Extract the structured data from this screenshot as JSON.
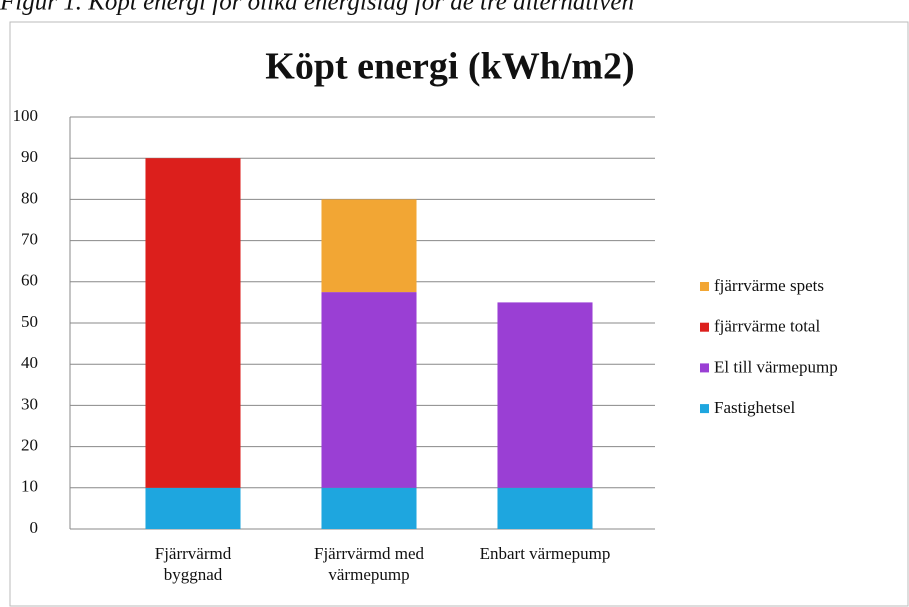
{
  "caption": "Figur 1. Köpt energi för olika energislag för de tre alternativen",
  "chart_data": {
    "type": "stacked_bar",
    "title": "Köpt energi (kWh/m2)",
    "categories": [
      "Fjärrvärmd\nbyggnad",
      "Fjärrvärmd med\nvärmepump",
      "Enbart värmepump"
    ],
    "series": [
      {
        "name": "Fastighetsel",
        "color": "#1ea6df",
        "values": [
          10,
          10,
          10
        ]
      },
      {
        "name": "El till värmepump",
        "color": "#9a3fd4",
        "values": [
          0,
          47.5,
          45
        ]
      },
      {
        "name": "fjärrvärme total",
        "color": "#dc1f1c",
        "values": [
          80,
          0,
          0
        ]
      },
      {
        "name": "fjärrvärme spets",
        "color": "#f2a634",
        "values": [
          0,
          22.5,
          0
        ]
      }
    ],
    "ylim": [
      0,
      100
    ],
    "yticks": [
      0,
      10,
      20,
      30,
      40,
      50,
      60,
      70,
      80,
      90,
      100
    ],
    "grid": true,
    "legend": "right"
  }
}
